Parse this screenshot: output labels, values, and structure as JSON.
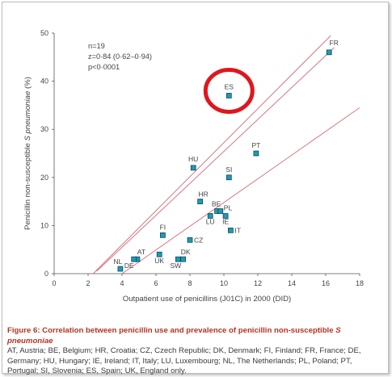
{
  "chart_data": {
    "type": "scatter",
    "xlabel": "Outpatient use of penicillins (J01C) in 2000 (DID)",
    "ylabel_prefix": "Penicillin non-susceptible ",
    "ylabel_italic": "S pneumoniae",
    "ylabel_suffix": " (%)",
    "xlim": [
      0,
      18
    ],
    "ylim": [
      0,
      50
    ],
    "xticks": [
      "0",
      "2",
      "4",
      "6",
      "8",
      "10",
      "12",
      "14",
      "16",
      "18"
    ],
    "yticks": [
      "0",
      "10",
      "20",
      "30",
      "40",
      "50"
    ],
    "stats": [
      "n=19",
      "z=0·84 (0·62–0·94)",
      "p<0·0001"
    ],
    "point_color": "#1a9bb5",
    "line_color": "#d9757f",
    "highlight_color": "#e0161e",
    "highlight_label": "ES",
    "points": [
      {
        "label": "AT",
        "x": 4.9,
        "y": 3
      },
      {
        "label": "BE",
        "x": 9.6,
        "y": 13
      },
      {
        "label": "HR",
        "x": 8.6,
        "y": 15
      },
      {
        "label": "CZ",
        "x": 8.0,
        "y": 7
      },
      {
        "label": "DK",
        "x": 7.6,
        "y": 3
      },
      {
        "label": "FI",
        "x": 6.4,
        "y": 8
      },
      {
        "label": "FR",
        "x": 16.2,
        "y": 46
      },
      {
        "label": "DE",
        "x": 4.7,
        "y": 3
      },
      {
        "label": "HU",
        "x": 8.2,
        "y": 22
      },
      {
        "label": "IE",
        "x": 10.1,
        "y": 12
      },
      {
        "label": "IT",
        "x": 10.4,
        "y": 9
      },
      {
        "label": "LU",
        "x": 9.2,
        "y": 12
      },
      {
        "label": "NL",
        "x": 3.9,
        "y": 1
      },
      {
        "label": "PL",
        "x": 9.8,
        "y": 13
      },
      {
        "label": "PT",
        "x": 11.9,
        "y": 25
      },
      {
        "label": "SI",
        "x": 10.3,
        "y": 20
      },
      {
        "label": "ES",
        "x": 10.3,
        "y": 37
      },
      {
        "label": "SW",
        "x": 7.3,
        "y": 3
      },
      {
        "label": "UK",
        "x": 6.2,
        "y": 4
      }
    ],
    "regression": {
      "fit": [
        [
          2.5,
          0.5
        ],
        [
          16.5,
          47
        ]
      ],
      "ci_upper": [
        [
          2.3,
          0
        ],
        [
          16.3,
          49.5
        ]
      ],
      "ci_lower": [
        [
          4.0,
          0
        ],
        [
          18,
          34.5
        ]
      ]
    }
  },
  "caption": {
    "title_prefix": "Figure 6: Correlation between penicillin use and prevalence of penicillin non-susceptible ",
    "title_italic": "S pneumoniae",
    "text": "AT, Austria; BE, Belgium; HR, Croatia; CZ, Czech Republic; DK, Denmark; FI, Finland; FR, France; DE, Germany; HU, Hungary; IE, Ireland; IT, Italy; LU, Luxembourg; NL, The Netherlands; PL, Poland; PT, Portugal; SI, Slovenia; ES, Spain; UK, England only."
  }
}
